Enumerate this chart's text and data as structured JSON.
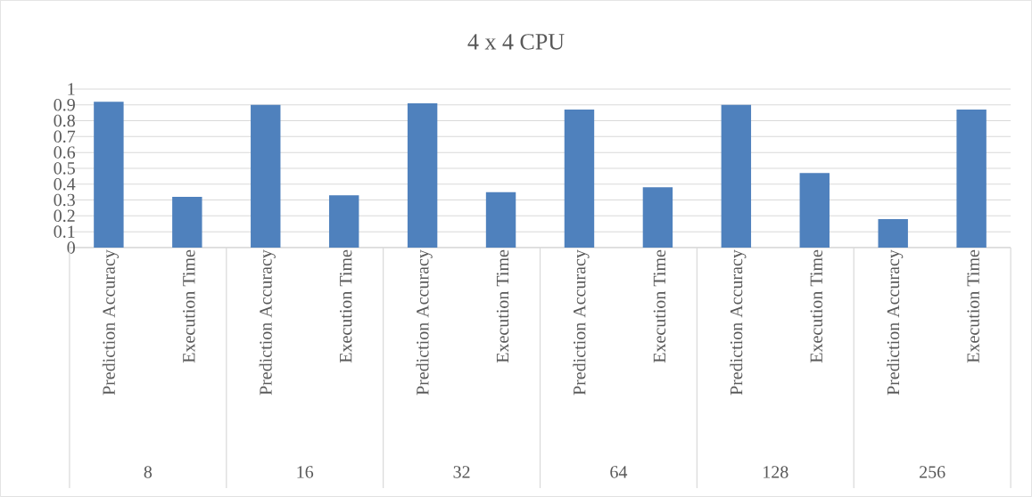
{
  "chart_data": {
    "type": "bar",
    "title": "4 x 4 CPU",
    "categories": [
      "Prediction Accuracy",
      "Execution Time",
      "Prediction Accuracy",
      "Execution Time",
      "Prediction Accuracy",
      "Execution Time",
      "Prediction Accuracy",
      "Execution Time",
      "Prediction Accuracy",
      "Execution Time",
      "Prediction Accuracy",
      "Execution Time"
    ],
    "values": [
      0.92,
      0.32,
      0.9,
      0.33,
      0.91,
      0.35,
      0.87,
      0.38,
      0.9,
      0.47,
      0.18,
      0.87
    ],
    "color": "#4f81bd",
    "ylim": [
      0,
      1
    ],
    "yticks": [
      0,
      0.1,
      0.2,
      0.3,
      0.4,
      0.5,
      0.6,
      0.7,
      0.8,
      0.9,
      1
    ],
    "grid": "y",
    "annotations": [
      "8",
      "16",
      "32",
      "64",
      "128",
      "256"
    ]
  }
}
